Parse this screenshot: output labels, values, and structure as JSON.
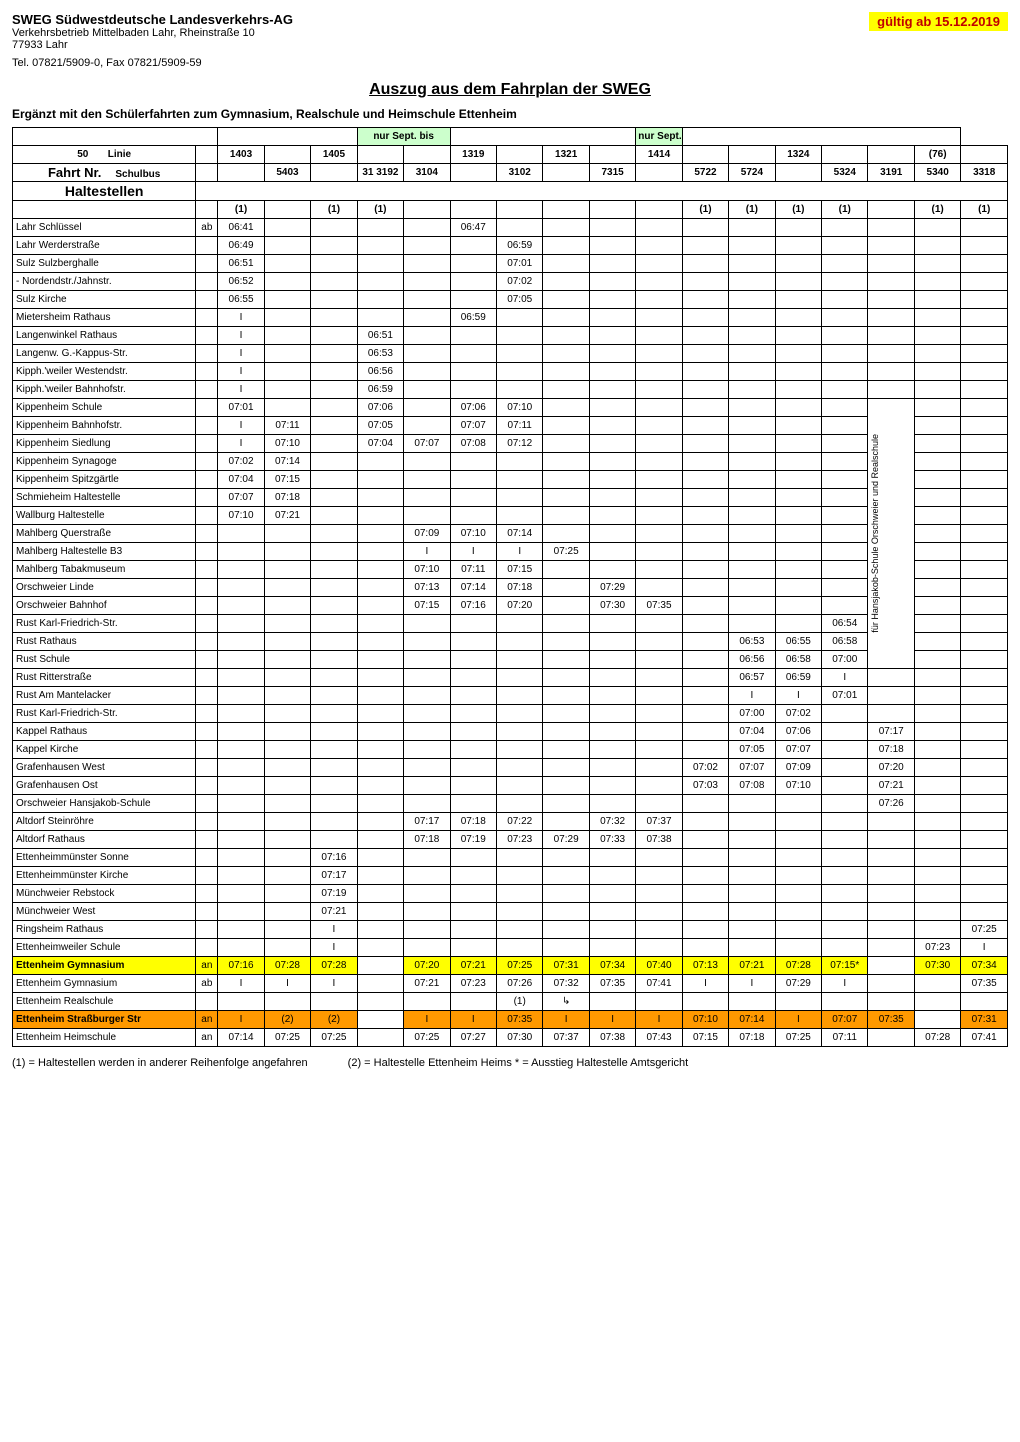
{
  "header": {
    "company": "SWEG Südwestdeutsche Landesverkehrs-AG",
    "addr1": "Verkehrsbetrieb Mittelbaden Lahr, Rheinstraße 10",
    "addr2": "77933 Lahr",
    "tel": "Tel. 07821/5909-0, Fax 07821/5909-59",
    "validity": "gültig ab 15.12.2019"
  },
  "title": "Auszug aus dem Fahrplan der SWEG",
  "subtitle": "Ergänzt mit den Schülerfahrten zum Gymnasium, Realschule und Heimschule Ettenheim",
  "nur_sept": "nur Sept. bis",
  "linie_label": "Linie",
  "fahrt_label": "Fahrt Nr.",
  "schulbus_label": "Schulbus",
  "haltestellen_label": "Haltestellen",
  "linie_nr": "50",
  "cols": {
    "linie": [
      "1403",
      "",
      "1405",
      "",
      "",
      "1319",
      "",
      "1321",
      "",
      "1414",
      "",
      "",
      "1324",
      "",
      "",
      "(76)",
      ""
    ],
    "fahrt": [
      "",
      "5403",
      "",
      "31 3192",
      "3104",
      "",
      "3102",
      "",
      "7315",
      "",
      "5722",
      "5724",
      "",
      "5324",
      "3191",
      "5340",
      "3318"
    ],
    "one": [
      "(1)",
      "",
      "(1)",
      "(1)",
      "",
      "",
      "",
      "",
      "",
      "",
      "(1)",
      "(1)",
      "(1)",
      "(1)",
      "",
      "(1)",
      "(1)"
    ]
  },
  "rotated_label": "für Hansjakob-Schule Orschweier und Realschule",
  "rows": [
    {
      "n": "Lahr Schlüssel",
      "ab": "ab",
      "t": [
        "06:41",
        "",
        "",
        "",
        "",
        "06:47",
        "",
        "",
        "",
        "",
        "",
        "",
        "",
        "",
        "",
        "",
        ""
      ]
    },
    {
      "n": "Lahr Werderstraße",
      "t": [
        "06:49",
        "",
        "",
        "",
        "",
        "",
        "06:59",
        "",
        "",
        "",
        "",
        "",
        "",
        "",
        "",
        "",
        ""
      ]
    },
    {
      "n": "Sulz Sulzberghalle",
      "t": [
        "06:51",
        "",
        "",
        "",
        "",
        "",
        "07:01",
        "",
        "",
        "",
        "",
        "",
        "",
        "",
        "",
        "",
        ""
      ]
    },
    {
      "n": " - Nordendstr./Jahnstr.",
      "t": [
        "06:52",
        "",
        "",
        "",
        "",
        "",
        "07:02",
        "",
        "",
        "",
        "",
        "",
        "",
        "",
        "",
        "",
        ""
      ]
    },
    {
      "n": "Sulz Kirche",
      "t": [
        "06:55",
        "",
        "",
        "",
        "",
        "",
        "07:05",
        "",
        "",
        "",
        "",
        "",
        "",
        "",
        "",
        "",
        ""
      ]
    },
    {
      "n": "Mietersheim Rathaus",
      "t": [
        "I",
        "",
        "",
        "",
        "",
        "06:59",
        "",
        "",
        "",
        "",
        "",
        "",
        "",
        "",
        "",
        "",
        ""
      ]
    },
    {
      "n": "Langenwinkel Rathaus",
      "t": [
        "I",
        "",
        "",
        "06:51",
        "",
        "",
        "",
        "",
        "",
        "",
        "",
        "",
        "",
        "",
        "",
        "",
        ""
      ]
    },
    {
      "n": "Langenw. G.-Kappus-Str.",
      "t": [
        "I",
        "",
        "",
        "06:53",
        "",
        "",
        "",
        "",
        "",
        "",
        "",
        "",
        "",
        "",
        "",
        "",
        ""
      ]
    },
    {
      "n": "Kipph.'weiler Westendstr.",
      "t": [
        "I",
        "",
        "",
        "06:56",
        "",
        "",
        "",
        "",
        "",
        "",
        "",
        "",
        "",
        "",
        "",
        "",
        ""
      ]
    },
    {
      "n": "Kipph.'weiler Bahnhofstr.",
      "t": [
        "I",
        "",
        "",
        "06:59",
        "",
        "",
        "",
        "",
        "",
        "",
        "",
        "",
        "",
        "",
        "",
        "",
        ""
      ]
    },
    {
      "n": "Kippenheim Schule",
      "t": [
        "07:01",
        "",
        "",
        "07:06",
        "",
        "07:06",
        "07:10",
        "",
        "",
        "",
        "",
        "",
        "",
        "",
        "",
        "",
        ""
      ]
    },
    {
      "n": "Kippenheim Bahnhofstr.",
      "t": [
        "I",
        "07:11",
        "",
        "07:05",
        "",
        "07:07",
        "07:11",
        "",
        "",
        "",
        "",
        "",
        "",
        "",
        "",
        "",
        ""
      ]
    },
    {
      "n": "Kippenheim Siedlung",
      "t": [
        "I",
        "07:10",
        "",
        "07:04",
        "07:07",
        "07:08",
        "07:12",
        "",
        "",
        "",
        "",
        "",
        "",
        "",
        "",
        "",
        ""
      ]
    },
    {
      "n": "Kippenheim Synagoge",
      "t": [
        "07:02",
        "07:14",
        "",
        "",
        "",
        "",
        "",
        "",
        "",
        "",
        "",
        "",
        "",
        "",
        "",
        "",
        ""
      ]
    },
    {
      "n": "Kippenheim Spitzgärtle",
      "t": [
        "07:04",
        "07:15",
        "",
        "",
        "",
        "",
        "",
        "",
        "",
        "",
        "",
        "",
        "",
        "",
        "",
        "",
        ""
      ]
    },
    {
      "n": "Schmieheim Haltestelle",
      "t": [
        "07:07",
        "07:18",
        "",
        "",
        "",
        "",
        "",
        "",
        "",
        "",
        "",
        "",
        "",
        "",
        "",
        "",
        ""
      ]
    },
    {
      "n": "Wallburg Haltestelle",
      "t": [
        "07:10",
        "07:21",
        "",
        "",
        "",
        "",
        "",
        "",
        "",
        "",
        "",
        "",
        "",
        "",
        "",
        "",
        ""
      ]
    },
    {
      "n": "Mahlberg Querstraße",
      "t": [
        "",
        "",
        "",
        "",
        "07:09",
        "07:10",
        "07:14",
        "",
        "",
        "",
        "",
        "",
        "",
        "",
        "",
        "",
        ""
      ]
    },
    {
      "n": "Mahlberg Haltestelle B3",
      "t": [
        "",
        "",
        "",
        "",
        "I",
        "I",
        "I",
        "07:25",
        "",
        "",
        "",
        "",
        "",
        "",
        "",
        "",
        ""
      ]
    },
    {
      "n": "Mahlberg Tabakmuseum",
      "t": [
        "",
        "",
        "",
        "",
        "07:10",
        "07:11",
        "07:15",
        "",
        "",
        "",
        "",
        "",
        "",
        "",
        "",
        "",
        ""
      ]
    },
    {
      "n": "Orschweier Linde",
      "t": [
        "",
        "",
        "",
        "",
        "07:13",
        "07:14",
        "07:18",
        "",
        "07:29",
        "",
        "",
        "",
        "",
        "",
        "",
        "",
        ""
      ]
    },
    {
      "n": "Orschweier Bahnhof",
      "t": [
        "",
        "",
        "",
        "",
        "07:15",
        "07:16",
        "07:20",
        "",
        "07:30",
        "07:35",
        "",
        "",
        "",
        "",
        "",
        "",
        ""
      ]
    },
    {
      "n": "Rust Karl-Friedrich-Str.",
      "t": [
        "",
        "",
        "",
        "",
        "",
        "",
        "",
        "",
        "",
        "",
        "",
        "",
        "",
        "06:54",
        "",
        "",
        ""
      ]
    },
    {
      "n": "Rust Rathaus",
      "t": [
        "",
        "",
        "",
        "",
        "",
        "",
        "",
        "",
        "",
        "",
        "",
        "06:53",
        "06:55",
        "06:58",
        "",
        "",
        ""
      ]
    },
    {
      "n": "Rust Schule",
      "t": [
        "",
        "",
        "",
        "",
        "",
        "",
        "",
        "",
        "",
        "",
        "",
        "06:56",
        "06:58",
        "07:00",
        "",
        "",
        ""
      ]
    },
    {
      "n": "Rust Ritterstraße",
      "t": [
        "",
        "",
        "",
        "",
        "",
        "",
        "",
        "",
        "",
        "",
        "",
        "06:57",
        "06:59",
        "I",
        "",
        "",
        ""
      ]
    },
    {
      "n": "Rust Am Mantelacker",
      "t": [
        "",
        "",
        "",
        "",
        "",
        "",
        "",
        "",
        "",
        "",
        "",
        "I",
        "I",
        "07:01",
        "",
        "",
        ""
      ]
    },
    {
      "n": "Rust Karl-Friedrich-Str.",
      "t": [
        "",
        "",
        "",
        "",
        "",
        "",
        "",
        "",
        "",
        "",
        "",
        "07:00",
        "07:02",
        "",
        "",
        "",
        ""
      ]
    },
    {
      "n": "Kappel Rathaus",
      "t": [
        "",
        "",
        "",
        "",
        "",
        "",
        "",
        "",
        "",
        "",
        "",
        "07:04",
        "07:06",
        "",
        "07:17",
        "",
        ""
      ]
    },
    {
      "n": "Kappel Kirche",
      "t": [
        "",
        "",
        "",
        "",
        "",
        "",
        "",
        "",
        "",
        "",
        "",
        "07:05",
        "07:07",
        "",
        "07:18",
        "",
        ""
      ]
    },
    {
      "n": "Grafenhausen West",
      "t": [
        "",
        "",
        "",
        "",
        "",
        "",
        "",
        "",
        "",
        "",
        "07:02",
        "07:07",
        "07:09",
        "",
        "07:20",
        "",
        ""
      ]
    },
    {
      "n": "Grafenhausen Ost",
      "t": [
        "",
        "",
        "",
        "",
        "",
        "",
        "",
        "",
        "",
        "",
        "07:03",
        "07:08",
        "07:10",
        "",
        "07:21",
        "",
        ""
      ]
    },
    {
      "n": "Orschweier Hansjakob-Schule",
      "t": [
        "",
        "",
        "",
        "",
        "",
        "",
        "",
        "",
        "",
        "",
        "",
        "",
        "",
        "",
        "07:26",
        "",
        ""
      ]
    },
    {
      "n": "Altdorf Steinröhre",
      "t": [
        "",
        "",
        "",
        "",
        "07:17",
        "07:18",
        "07:22",
        "",
        "07:32",
        "07:37",
        "",
        "",
        "",
        "",
        "",
        "",
        ""
      ]
    },
    {
      "n": "Altdorf Rathaus",
      "t": [
        "",
        "",
        "",
        "",
        "07:18",
        "07:19",
        "07:23",
        "07:29",
        "07:33",
        "07:38",
        "",
        "",
        "",
        "",
        "",
        "",
        ""
      ]
    },
    {
      "n": "Ettenheimmünster Sonne",
      "t": [
        "",
        "",
        "07:16",
        "",
        "",
        "",
        "",
        "",
        "",
        "",
        "",
        "",
        "",
        "",
        "",
        "",
        ""
      ]
    },
    {
      "n": "Ettenheimmünster Kirche",
      "t": [
        "",
        "",
        "07:17",
        "",
        "",
        "",
        "",
        "",
        "",
        "",
        "",
        "",
        "",
        "",
        "",
        "",
        ""
      ]
    },
    {
      "n": "Münchweier Rebstock",
      "t": [
        "",
        "",
        "07:19",
        "",
        "",
        "",
        "",
        "",
        "",
        "",
        "",
        "",
        "",
        "",
        "",
        "",
        ""
      ]
    },
    {
      "n": "Münchweier West",
      "t": [
        "",
        "",
        "07:21",
        "",
        "",
        "",
        "",
        "",
        "",
        "",
        "",
        "",
        "",
        "",
        "",
        "",
        ""
      ]
    },
    {
      "n": "Ringsheim Rathaus",
      "t": [
        "",
        "",
        "I",
        "",
        "",
        "",
        "",
        "",
        "",
        "",
        "",
        "",
        "",
        "",
        "",
        "",
        "07:25"
      ]
    },
    {
      "n": "Ettenheimweiler Schule",
      "t": [
        "",
        "",
        "I",
        "",
        "",
        "",
        "",
        "",
        "",
        "",
        "",
        "",
        "",
        "",
        "",
        "07:23",
        "I"
      ]
    },
    {
      "n": "Ettenheim Gymnasium",
      "ab": "an",
      "hl": "yellow",
      "t": [
        "07:16",
        "07:28",
        "07:28",
        "",
        "07:20",
        "07:21",
        "07:25",
        "07:31",
        "07:34",
        "07:40",
        "07:13",
        "07:21",
        "07:28",
        "07:15*",
        "",
        "07:30",
        "07:34"
      ]
    },
    {
      "n": "Ettenheim Gymnasium",
      "ab": "ab",
      "t": [
        "I",
        "I",
        "I",
        "",
        "07:21",
        "07:23",
        "07:26",
        "07:32",
        "07:35",
        "07:41",
        "I",
        "I",
        "07:29",
        "I",
        "",
        "",
        "07:35"
      ]
    },
    {
      "n": "Ettenheim Realschule",
      "t": [
        "",
        "",
        "",
        "",
        "",
        "",
        "(1)",
        "↳",
        "",
        "",
        "",
        "",
        "",
        "",
        "",
        "",
        ""
      ]
    },
    {
      "n": "Ettenheim Straßburger Str",
      "ab": "an",
      "hl": "orange",
      "t": [
        "I",
        "(2)",
        "(2)",
        "",
        "I",
        "I",
        "07:35",
        "I",
        "I",
        "I",
        "07:10",
        "07:14",
        "I",
        "07:07",
        "07:35",
        "",
        "07:31"
      ]
    },
    {
      "n": "Ettenheim Heimschule",
      "ab": "an",
      "t": [
        "07:14",
        "07:25",
        "07:25",
        "",
        "07:25",
        "07:27",
        "07:30",
        "07:37",
        "07:38",
        "07:43",
        "07:15",
        "07:18",
        "07:25",
        "07:11",
        "",
        "07:28",
        "07:41"
      ]
    }
  ],
  "footnotes": {
    "f1": "(1)  = Haltestellen werden in anderer Reihenfolge angefahren",
    "f2": "(2)  = Haltestelle Ettenheim Heims * = Ausstieg Haltestelle Amtsgericht"
  }
}
